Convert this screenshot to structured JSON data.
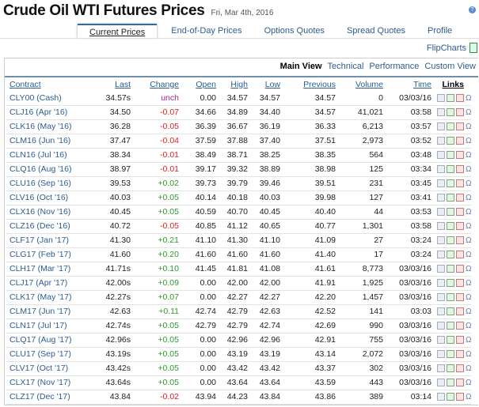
{
  "page": {
    "title": "Crude Oil WTI Futures Prices",
    "date": "Fri, Mar 4th, 2016"
  },
  "tabs": [
    "Current Prices",
    "End-of-Day Prices",
    "Options Quotes",
    "Spread Quotes",
    "Profile"
  ],
  "flipcharts": "FlipCharts",
  "views": [
    "Main View",
    "Technical",
    "Performance",
    "Custom View"
  ],
  "columns": [
    "Contract",
    "Last",
    "Change",
    "Open",
    "High",
    "Low",
    "Previous",
    "Volume",
    "Time",
    "Links"
  ],
  "colors": {
    "negative": "#e02020",
    "positive": "#2a9a2a",
    "unchanged": "#9a2a8a",
    "link": "#2c5c8f"
  },
  "rows": [
    [
      "CLY00 (Cash)",
      "34.57s",
      "unch",
      "0.00",
      "34.57",
      "34.57",
      "34.57",
      "0",
      "03/03/16"
    ],
    [
      "CLJ16 (Apr '16)",
      "34.50",
      "-0.07",
      "34.66",
      "34.89",
      "34.40",
      "34.57",
      "41,021",
      "03:58"
    ],
    [
      "CLK16 (May '16)",
      "36.28",
      "-0.05",
      "36.39",
      "36.67",
      "36.19",
      "36.33",
      "6,213",
      "03:57"
    ],
    [
      "CLM16 (Jun '16)",
      "37.47",
      "-0.04",
      "37.59",
      "37.88",
      "37.40",
      "37.51",
      "2,973",
      "03:52"
    ],
    [
      "CLN16 (Jul '16)",
      "38.34",
      "-0.01",
      "38.49",
      "38.71",
      "38.25",
      "38.35",
      "564",
      "03:48"
    ],
    [
      "CLQ16 (Aug '16)",
      "38.97",
      "-0.01",
      "39.17",
      "39.32",
      "38.89",
      "38.98",
      "125",
      "03:34"
    ],
    [
      "CLU16 (Sep '16)",
      "39.53",
      "+0.02",
      "39.73",
      "39.79",
      "39.46",
      "39.51",
      "231",
      "03:45"
    ],
    [
      "CLV16 (Oct '16)",
      "40.03",
      "+0.05",
      "40.14",
      "40.18",
      "40.03",
      "39.98",
      "127",
      "03:41"
    ],
    [
      "CLX16 (Nov '16)",
      "40.45",
      "+0.05",
      "40.59",
      "40.70",
      "40.45",
      "40.40",
      "44",
      "03:53"
    ],
    [
      "CLZ16 (Dec '16)",
      "40.72",
      "-0.05",
      "40.85",
      "41.12",
      "40.65",
      "40.77",
      "1,301",
      "03:58"
    ],
    [
      "CLF17 (Jan '17)",
      "41.30",
      "+0.21",
      "41.10",
      "41.30",
      "41.10",
      "41.09",
      "27",
      "03:24"
    ],
    [
      "CLG17 (Feb '17)",
      "41.60",
      "+0.20",
      "41.60",
      "41.60",
      "41.60",
      "41.40",
      "17",
      "03:24"
    ],
    [
      "CLH17 (Mar '17)",
      "41.71s",
      "+0.10",
      "41.45",
      "41.81",
      "41.08",
      "41.61",
      "8,773",
      "03/03/16"
    ],
    [
      "CLJ17 (Apr '17)",
      "42.00s",
      "+0.09",
      "0.00",
      "42.00",
      "42.00",
      "41.91",
      "1,925",
      "03/03/16"
    ],
    [
      "CLK17 (May '17)",
      "42.27s",
      "+0.07",
      "0.00",
      "42.27",
      "42.27",
      "42.20",
      "1,457",
      "03/03/16"
    ],
    [
      "CLM17 (Jun '17)",
      "42.63",
      "+0.11",
      "42.74",
      "42.79",
      "42.63",
      "42.52",
      "141",
      "03:03"
    ],
    [
      "CLN17 (Jul '17)",
      "42.74s",
      "+0.05",
      "42.79",
      "42.79",
      "42.74",
      "42.69",
      "990",
      "03/03/16"
    ],
    [
      "CLQ17 (Aug '17)",
      "42.96s",
      "+0.05",
      "0.00",
      "42.96",
      "42.96",
      "42.91",
      "755",
      "03/03/16"
    ],
    [
      "CLU17 (Sep '17)",
      "43.19s",
      "+0.05",
      "0.00",
      "43.19",
      "43.19",
      "43.14",
      "2,072",
      "03/03/16"
    ],
    [
      "CLV17 (Oct '17)",
      "43.42s",
      "+0.05",
      "0.00",
      "43.42",
      "43.42",
      "43.37",
      "302",
      "03/03/16"
    ],
    [
      "CLX17 (Nov '17)",
      "43.64s",
      "+0.05",
      "0.00",
      "43.64",
      "43.64",
      "43.59",
      "443",
      "03/03/16"
    ],
    [
      "CLZ17 (Dec '17)",
      "43.84",
      "-0.02",
      "43.94",
      "44.23",
      "43.84",
      "43.86",
      "389",
      "03:14"
    ]
  ],
  "link_icons": [
    "bar-chart-icon",
    "line-chart-icon",
    "options-icon",
    "omega-icon"
  ]
}
